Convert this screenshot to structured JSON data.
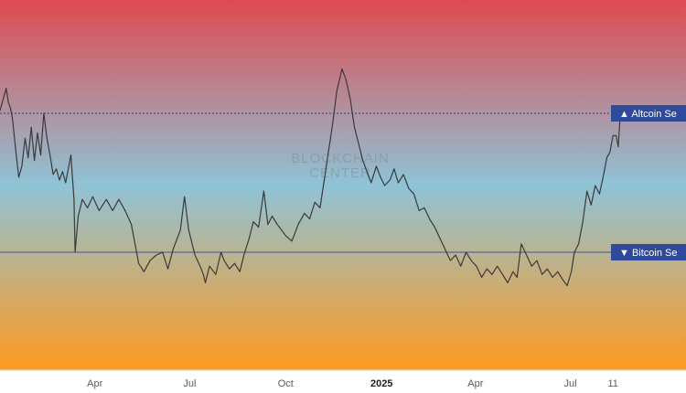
{
  "colors": {
    "line": "#3a3a3a",
    "band_top": "#e04a50",
    "band_mid": "#8fc3d6",
    "band_bottom": "#ff9a1f",
    "altcoin_line": "#2e3f7c",
    "bitcoin_line": "#3e56a0",
    "tag_bg": "#2f4a99"
  },
  "watermark": {
    "line1": "BLOCKCHAIN",
    "line2": "CENTER"
  },
  "chart_data": {
    "type": "line",
    "title": "",
    "xlabel": "",
    "ylabel": "",
    "x_ticks": [
      {
        "date": "2024-04-01",
        "label": "Apr",
        "bold": false
      },
      {
        "date": "2024-07-01",
        "label": "Jul",
        "bold": false
      },
      {
        "date": "2024-10-01",
        "label": "Oct",
        "bold": false
      },
      {
        "date": "2025-01-01",
        "label": "2025",
        "bold": true
      },
      {
        "date": "2025-04-01",
        "label": "Apr",
        "bold": false
      },
      {
        "date": "2025-07-01",
        "label": "Jul",
        "bold": false
      },
      {
        "date": "2025-08-11",
        "label": "11",
        "bold": false
      }
    ],
    "xlim": [
      "2024-01-01",
      "2025-10-20"
    ],
    "ylim": [
      0,
      100
    ],
    "grid": false,
    "reference_lines": [
      {
        "name": "Altcoin Season",
        "label": "▲ Altcoin Se",
        "value": 75
      },
      {
        "name": "Bitcoin Season",
        "label": "▼ Bitcoin Se",
        "value": 25
      }
    ],
    "series": [
      {
        "values": [
          {
            "x": "2024-01-01",
            "y": 76
          },
          {
            "x": "2024-01-04",
            "y": 80
          },
          {
            "x": "2024-01-07",
            "y": 84
          },
          {
            "x": "2024-01-09",
            "y": 79
          },
          {
            "x": "2024-01-11",
            "y": 77
          },
          {
            "x": "2024-01-13",
            "y": 73
          },
          {
            "x": "2024-01-16",
            "y": 62
          },
          {
            "x": "2024-01-19",
            "y": 52
          },
          {
            "x": "2024-01-22",
            "y": 56
          },
          {
            "x": "2024-01-25",
            "y": 66
          },
          {
            "x": "2024-01-28",
            "y": 59
          },
          {
            "x": "2024-01-31",
            "y": 70
          },
          {
            "x": "2024-02-03",
            "y": 58
          },
          {
            "x": "2024-02-06",
            "y": 68
          },
          {
            "x": "2024-02-09",
            "y": 60
          },
          {
            "x": "2024-02-12",
            "y": 75
          },
          {
            "x": "2024-02-15",
            "y": 66
          },
          {
            "x": "2024-02-18",
            "y": 60
          },
          {
            "x": "2024-02-21",
            "y": 53
          },
          {
            "x": "2024-02-24",
            "y": 55
          },
          {
            "x": "2024-02-27",
            "y": 51
          },
          {
            "x": "2024-03-01",
            "y": 54
          },
          {
            "x": "2024-03-04",
            "y": 50
          },
          {
            "x": "2024-03-07",
            "y": 56
          },
          {
            "x": "2024-03-09",
            "y": 60
          },
          {
            "x": "2024-03-12",
            "y": 44
          },
          {
            "x": "2024-03-13",
            "y": 25
          },
          {
            "x": "2024-03-16",
            "y": 38
          },
          {
            "x": "2024-03-20",
            "y": 44
          },
          {
            "x": "2024-03-25",
            "y": 41
          },
          {
            "x": "2024-03-30",
            "y": 45
          },
          {
            "x": "2024-04-05",
            "y": 40
          },
          {
            "x": "2024-04-12",
            "y": 44
          },
          {
            "x": "2024-04-18",
            "y": 40
          },
          {
            "x": "2024-04-24",
            "y": 44
          },
          {
            "x": "2024-04-30",
            "y": 40
          },
          {
            "x": "2024-05-06",
            "y": 35
          },
          {
            "x": "2024-05-10",
            "y": 27
          },
          {
            "x": "2024-05-13",
            "y": 21
          },
          {
            "x": "2024-05-18",
            "y": 18
          },
          {
            "x": "2024-05-24",
            "y": 22
          },
          {
            "x": "2024-05-30",
            "y": 24
          },
          {
            "x": "2024-06-05",
            "y": 25
          },
          {
            "x": "2024-06-10",
            "y": 19
          },
          {
            "x": "2024-06-15",
            "y": 26
          },
          {
            "x": "2024-06-22",
            "y": 33
          },
          {
            "x": "2024-06-26",
            "y": 45
          },
          {
            "x": "2024-06-30",
            "y": 33
          },
          {
            "x": "2024-07-06",
            "y": 24
          },
          {
            "x": "2024-07-11",
            "y": 20
          },
          {
            "x": "2024-07-14",
            "y": 17
          },
          {
            "x": "2024-07-16",
            "y": 14
          },
          {
            "x": "2024-07-20",
            "y": 20
          },
          {
            "x": "2024-07-26",
            "y": 17
          },
          {
            "x": "2024-07-31",
            "y": 25
          },
          {
            "x": "2024-08-03",
            "y": 22
          },
          {
            "x": "2024-08-08",
            "y": 19
          },
          {
            "x": "2024-08-13",
            "y": 21
          },
          {
            "x": "2024-08-18",
            "y": 18
          },
          {
            "x": "2024-08-22",
            "y": 24
          },
          {
            "x": "2024-08-27",
            "y": 30
          },
          {
            "x": "2024-08-31",
            "y": 36
          },
          {
            "x": "2024-09-05",
            "y": 34
          },
          {
            "x": "2024-09-10",
            "y": 47
          },
          {
            "x": "2024-09-14",
            "y": 35
          },
          {
            "x": "2024-09-18",
            "y": 38
          },
          {
            "x": "2024-09-23",
            "y": 35
          },
          {
            "x": "2024-09-27",
            "y": 33
          },
          {
            "x": "2024-10-01",
            "y": 31
          },
          {
            "x": "2024-10-07",
            "y": 29
          },
          {
            "x": "2024-10-13",
            "y": 35
          },
          {
            "x": "2024-10-19",
            "y": 39
          },
          {
            "x": "2024-10-24",
            "y": 37
          },
          {
            "x": "2024-10-29",
            "y": 43
          },
          {
            "x": "2024-11-03",
            "y": 41
          },
          {
            "x": "2024-11-07",
            "y": 51
          },
          {
            "x": "2024-11-11",
            "y": 61
          },
          {
            "x": "2024-11-15",
            "y": 71
          },
          {
            "x": "2024-11-19",
            "y": 83
          },
          {
            "x": "2024-11-24",
            "y": 91
          },
          {
            "x": "2024-11-28",
            "y": 87
          },
          {
            "x": "2024-12-02",
            "y": 80
          },
          {
            "x": "2024-12-06",
            "y": 70
          },
          {
            "x": "2024-12-10",
            "y": 64
          },
          {
            "x": "2024-12-14",
            "y": 58
          },
          {
            "x": "2024-12-18",
            "y": 54
          },
          {
            "x": "2024-12-22",
            "y": 50
          },
          {
            "x": "2024-12-27",
            "y": 56
          },
          {
            "x": "2024-12-31",
            "y": 52
          },
          {
            "x": "2025-01-04",
            "y": 49
          },
          {
            "x": "2025-01-09",
            "y": 51
          },
          {
            "x": "2025-01-13",
            "y": 55
          },
          {
            "x": "2025-01-17",
            "y": 50
          },
          {
            "x": "2025-01-22",
            "y": 53
          },
          {
            "x": "2025-01-27",
            "y": 48
          },
          {
            "x": "2025-02-01",
            "y": 46
          },
          {
            "x": "2025-02-06",
            "y": 40
          },
          {
            "x": "2025-02-11",
            "y": 41
          },
          {
            "x": "2025-02-16",
            "y": 37
          },
          {
            "x": "2025-02-21",
            "y": 34
          },
          {
            "x": "2025-02-26",
            "y": 30
          },
          {
            "x": "2025-03-03",
            "y": 26
          },
          {
            "x": "2025-03-08",
            "y": 22
          },
          {
            "x": "2025-03-13",
            "y": 24
          },
          {
            "x": "2025-03-18",
            "y": 20
          },
          {
            "x": "2025-03-23",
            "y": 25
          },
          {
            "x": "2025-03-28",
            "y": 22
          },
          {
            "x": "2025-04-02",
            "y": 20
          },
          {
            "x": "2025-04-07",
            "y": 16
          },
          {
            "x": "2025-04-12",
            "y": 19
          },
          {
            "x": "2025-04-17",
            "y": 17
          },
          {
            "x": "2025-04-22",
            "y": 20
          },
          {
            "x": "2025-04-27",
            "y": 17
          },
          {
            "x": "2025-05-02",
            "y": 14
          },
          {
            "x": "2025-05-07",
            "y": 18
          },
          {
            "x": "2025-05-11",
            "y": 16
          },
          {
            "x": "2025-05-15",
            "y": 28
          },
          {
            "x": "2025-05-20",
            "y": 24
          },
          {
            "x": "2025-05-25",
            "y": 20
          },
          {
            "x": "2025-05-30",
            "y": 22
          },
          {
            "x": "2025-06-04",
            "y": 17
          },
          {
            "x": "2025-06-09",
            "y": 19
          },
          {
            "x": "2025-06-14",
            "y": 16
          },
          {
            "x": "2025-06-19",
            "y": 18
          },
          {
            "x": "2025-06-24",
            "y": 15
          },
          {
            "x": "2025-06-28",
            "y": 13
          },
          {
            "x": "2025-07-02",
            "y": 18
          },
          {
            "x": "2025-07-05",
            "y": 25
          },
          {
            "x": "2025-07-09",
            "y": 28
          },
          {
            "x": "2025-07-13",
            "y": 36
          },
          {
            "x": "2025-07-17",
            "y": 47
          },
          {
            "x": "2025-07-21",
            "y": 42
          },
          {
            "x": "2025-07-25",
            "y": 49
          },
          {
            "x": "2025-07-29",
            "y": 46
          },
          {
            "x": "2025-08-02",
            "y": 53
          },
          {
            "x": "2025-08-05",
            "y": 59
          },
          {
            "x": "2025-08-08",
            "y": 61
          },
          {
            "x": "2025-08-11",
            "y": 67
          },
          {
            "x": "2025-08-14",
            "y": 67
          },
          {
            "x": "2025-08-16",
            "y": 63
          },
          {
            "x": "2025-08-18",
            "y": 75
          }
        ]
      }
    ]
  }
}
